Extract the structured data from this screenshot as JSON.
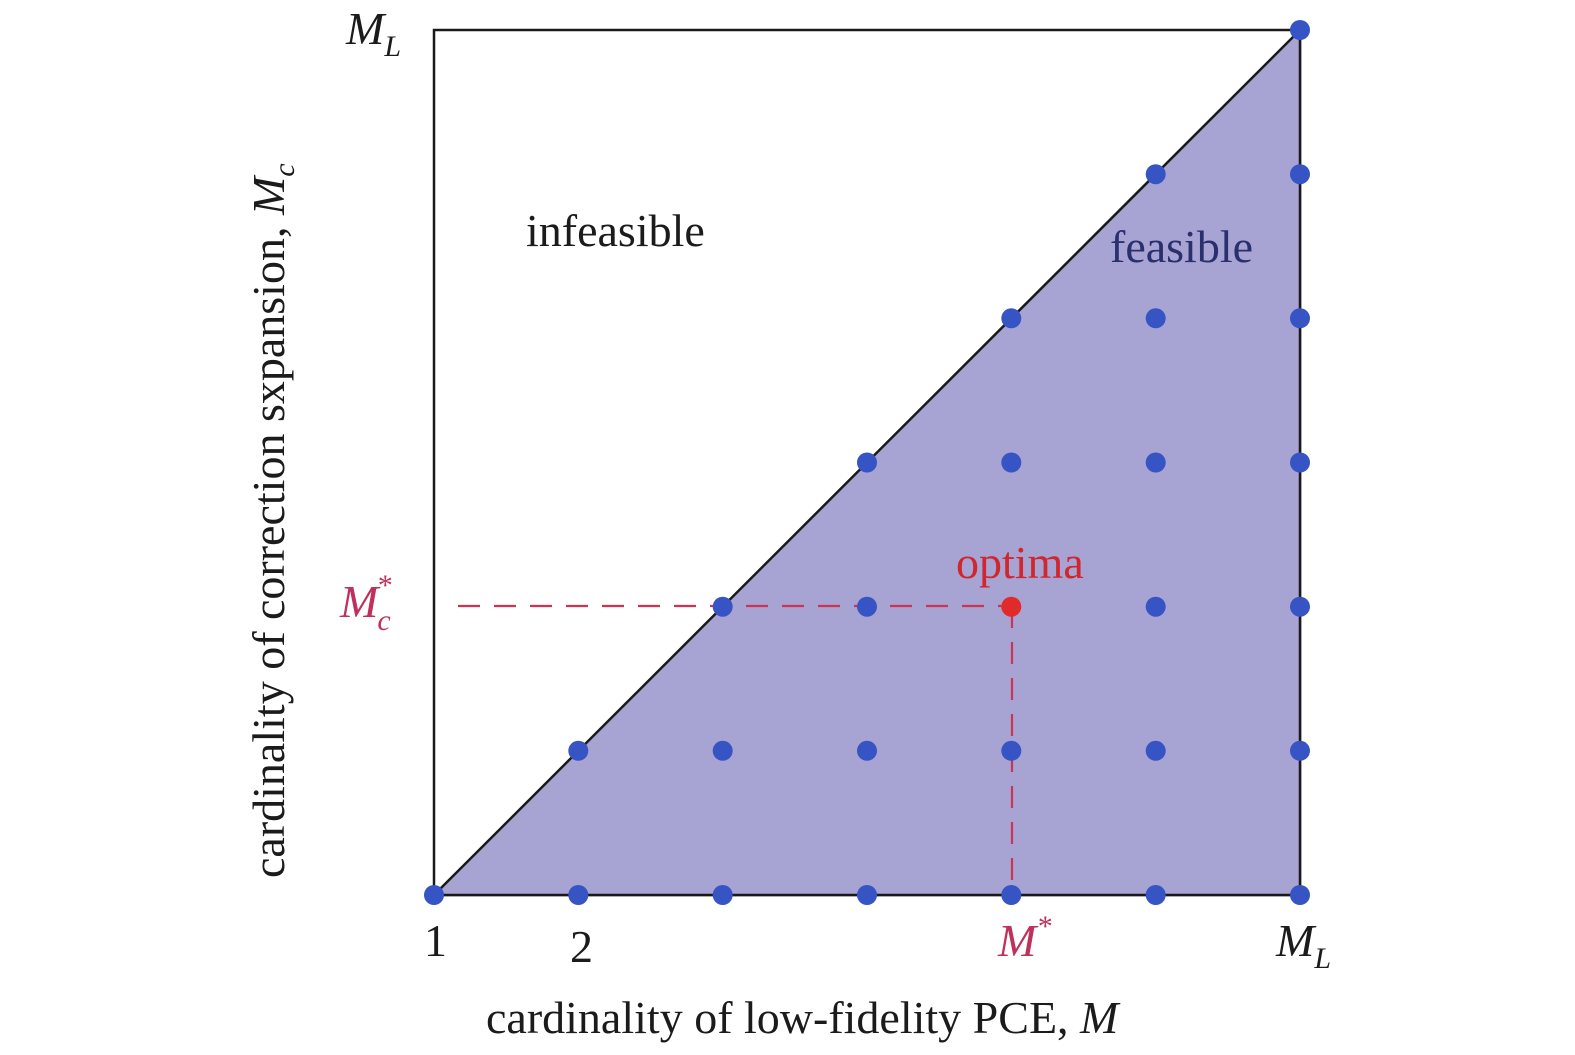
{
  "colors": {
    "feasible_fill": "#a7a3d3",
    "point": "#3654c4",
    "optimum": "#e12b2b",
    "guide_line": "#cc3355",
    "frame": "#1a1a1a"
  },
  "axes": {
    "x_label": "cardinality of low-fidelity PCE, ",
    "x_label_var": "M",
    "y_label": "cardinality of correction sxpansion, ",
    "y_label_var": "M",
    "y_label_sub": "c",
    "x_ticks": [
      {
        "text": "1",
        "italic": false,
        "sub": "",
        "sup": "",
        "highlight": false
      },
      {
        "text": "2",
        "italic": false,
        "sub": "",
        "sup": "",
        "highlight": false
      },
      {
        "text": "M",
        "italic": true,
        "sub": "",
        "sup": "*",
        "highlight": true
      },
      {
        "text": "M",
        "italic": true,
        "sub": "L",
        "sup": "",
        "highlight": false
      }
    ],
    "y_ticks": [
      {
        "text": "M",
        "italic": true,
        "sub": "L",
        "sup": "",
        "highlight": false
      },
      {
        "text": "M",
        "italic": true,
        "sub": "c",
        "sup": "*",
        "highlight": true
      }
    ]
  },
  "regions": {
    "infeasible_label": "infeasible",
    "feasible_label": "feasible",
    "optimum_label": "optima"
  },
  "grid": {
    "columns": 7,
    "rows": 7,
    "constraint": "row <= column (M_c <= M)",
    "optimum": {
      "column": 5,
      "row": 5
    }
  }
}
